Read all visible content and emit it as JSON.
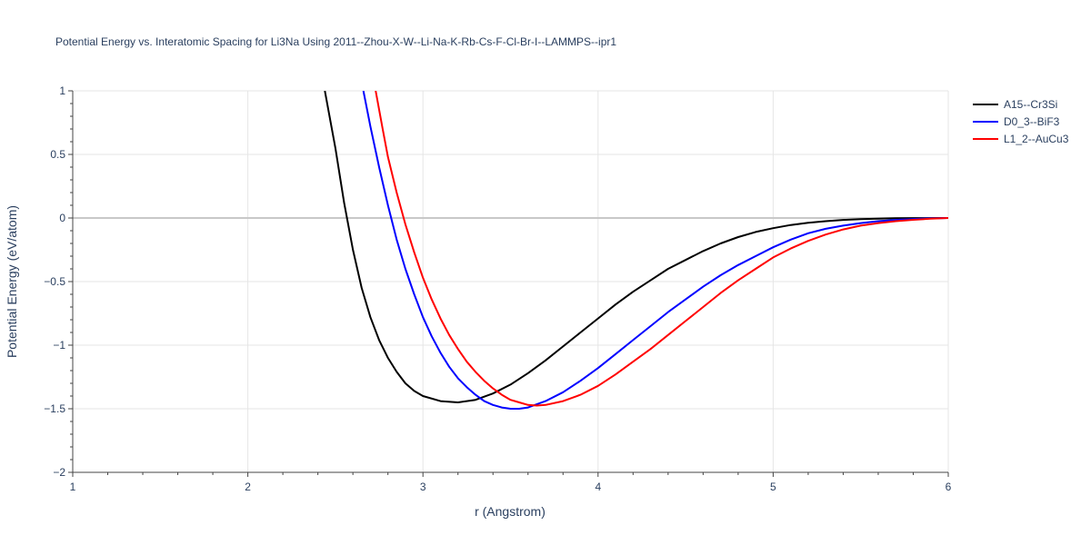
{
  "chart_data": {
    "type": "line",
    "title": "Potential Energy vs. Interatomic Spacing for Li3Na Using 2011--Zhou-X-W--Li-Na-K-Rb-Cs-F-Cl-Br-I--LAMMPS--ipr1",
    "xlabel": "r (Angstrom)",
    "ylabel": "Potential Energy (eV/atom)",
    "xlim": [
      1,
      6
    ],
    "ylim": [
      -2,
      1
    ],
    "xticks": [
      "1",
      "2",
      "3",
      "4",
      "5",
      "6"
    ],
    "yticks": [
      "1",
      "0.5",
      "0",
      "−0.5",
      "−1",
      "−1.5",
      "−2"
    ],
    "ytick_values": [
      1,
      0.5,
      0,
      -0.5,
      -1,
      -1.5,
      -2
    ],
    "xtick_values": [
      1,
      2,
      3,
      4,
      5,
      6
    ],
    "grid": true,
    "legend_position": "top-right",
    "series": [
      {
        "name": "A15--Cr3Si",
        "color": "#000000",
        "points": [
          [
            2.44,
            1.0
          ],
          [
            2.5,
            0.55
          ],
          [
            2.55,
            0.12
          ],
          [
            2.6,
            -0.25
          ],
          [
            2.65,
            -0.55
          ],
          [
            2.7,
            -0.78
          ],
          [
            2.75,
            -0.96
          ],
          [
            2.8,
            -1.1
          ],
          [
            2.85,
            -1.21
          ],
          [
            2.9,
            -1.3
          ],
          [
            2.95,
            -1.36
          ],
          [
            3.0,
            -1.4
          ],
          [
            3.1,
            -1.44
          ],
          [
            3.2,
            -1.45
          ],
          [
            3.3,
            -1.43
          ],
          [
            3.4,
            -1.38
          ],
          [
            3.5,
            -1.31
          ],
          [
            3.6,
            -1.22
          ],
          [
            3.7,
            -1.12
          ],
          [
            3.8,
            -1.01
          ],
          [
            3.9,
            -0.9
          ],
          [
            4.0,
            -0.79
          ],
          [
            4.1,
            -0.68
          ],
          [
            4.2,
            -0.58
          ],
          [
            4.3,
            -0.49
          ],
          [
            4.4,
            -0.4
          ],
          [
            4.5,
            -0.33
          ],
          [
            4.6,
            -0.26
          ],
          [
            4.7,
            -0.2
          ],
          [
            4.8,
            -0.15
          ],
          [
            4.9,
            -0.11
          ],
          [
            5.0,
            -0.08
          ],
          [
            5.1,
            -0.055
          ],
          [
            5.2,
            -0.038
          ],
          [
            5.3,
            -0.025
          ],
          [
            5.4,
            -0.015
          ],
          [
            5.5,
            -0.009
          ],
          [
            5.6,
            -0.005
          ],
          [
            5.7,
            -0.002
          ],
          [
            5.8,
            -0.001
          ],
          [
            6.0,
            0.0
          ]
        ]
      },
      {
        "name": "D0_3--BiF3",
        "color": "#0000ff",
        "points": [
          [
            2.66,
            1.0
          ],
          [
            2.7,
            0.72
          ],
          [
            2.75,
            0.4
          ],
          [
            2.8,
            0.1
          ],
          [
            2.85,
            -0.17
          ],
          [
            2.9,
            -0.4
          ],
          [
            2.95,
            -0.6
          ],
          [
            3.0,
            -0.78
          ],
          [
            3.05,
            -0.93
          ],
          [
            3.1,
            -1.06
          ],
          [
            3.15,
            -1.17
          ],
          [
            3.2,
            -1.26
          ],
          [
            3.25,
            -1.33
          ],
          [
            3.3,
            -1.39
          ],
          [
            3.35,
            -1.44
          ],
          [
            3.4,
            -1.47
          ],
          [
            3.45,
            -1.49
          ],
          [
            3.5,
            -1.5
          ],
          [
            3.55,
            -1.5
          ],
          [
            3.6,
            -1.49
          ],
          [
            3.7,
            -1.44
          ],
          [
            3.8,
            -1.37
          ],
          [
            3.9,
            -1.28
          ],
          [
            4.0,
            -1.18
          ],
          [
            4.1,
            -1.07
          ],
          [
            4.2,
            -0.96
          ],
          [
            4.3,
            -0.85
          ],
          [
            4.4,
            -0.74
          ],
          [
            4.5,
            -0.64
          ],
          [
            4.6,
            -0.54
          ],
          [
            4.7,
            -0.45
          ],
          [
            4.8,
            -0.37
          ],
          [
            4.9,
            -0.3
          ],
          [
            5.0,
            -0.23
          ],
          [
            5.1,
            -0.17
          ],
          [
            5.2,
            -0.12
          ],
          [
            5.3,
            -0.085
          ],
          [
            5.4,
            -0.06
          ],
          [
            5.5,
            -0.04
          ],
          [
            5.6,
            -0.025
          ],
          [
            5.7,
            -0.015
          ],
          [
            5.8,
            -0.008
          ],
          [
            5.9,
            -0.003
          ],
          [
            6.0,
            0.0
          ]
        ]
      },
      {
        "name": "L1_2--AuCu3",
        "color": "#ff0000",
        "points": [
          [
            2.73,
            1.0
          ],
          [
            2.77,
            0.7
          ],
          [
            2.8,
            0.48
          ],
          [
            2.85,
            0.2
          ],
          [
            2.9,
            -0.05
          ],
          [
            2.95,
            -0.27
          ],
          [
            3.0,
            -0.47
          ],
          [
            3.05,
            -0.64
          ],
          [
            3.1,
            -0.79
          ],
          [
            3.15,
            -0.92
          ],
          [
            3.2,
            -1.03
          ],
          [
            3.25,
            -1.13
          ],
          [
            3.3,
            -1.21
          ],
          [
            3.35,
            -1.28
          ],
          [
            3.4,
            -1.34
          ],
          [
            3.45,
            -1.39
          ],
          [
            3.5,
            -1.43
          ],
          [
            3.55,
            -1.45
          ],
          [
            3.6,
            -1.47
          ],
          [
            3.65,
            -1.475
          ],
          [
            3.7,
            -1.47
          ],
          [
            3.8,
            -1.44
          ],
          [
            3.9,
            -1.39
          ],
          [
            4.0,
            -1.32
          ],
          [
            4.1,
            -1.23
          ],
          [
            4.2,
            -1.13
          ],
          [
            4.3,
            -1.03
          ],
          [
            4.4,
            -0.92
          ],
          [
            4.5,
            -0.81
          ],
          [
            4.6,
            -0.7
          ],
          [
            4.7,
            -0.59
          ],
          [
            4.8,
            -0.49
          ],
          [
            4.9,
            -0.4
          ],
          [
            5.0,
            -0.31
          ],
          [
            5.1,
            -0.24
          ],
          [
            5.2,
            -0.18
          ],
          [
            5.3,
            -0.13
          ],
          [
            5.4,
            -0.09
          ],
          [
            5.5,
            -0.06
          ],
          [
            5.6,
            -0.04
          ],
          [
            5.7,
            -0.025
          ],
          [
            5.8,
            -0.014
          ],
          [
            5.9,
            -0.006
          ],
          [
            6.0,
            0.0
          ]
        ]
      }
    ]
  }
}
